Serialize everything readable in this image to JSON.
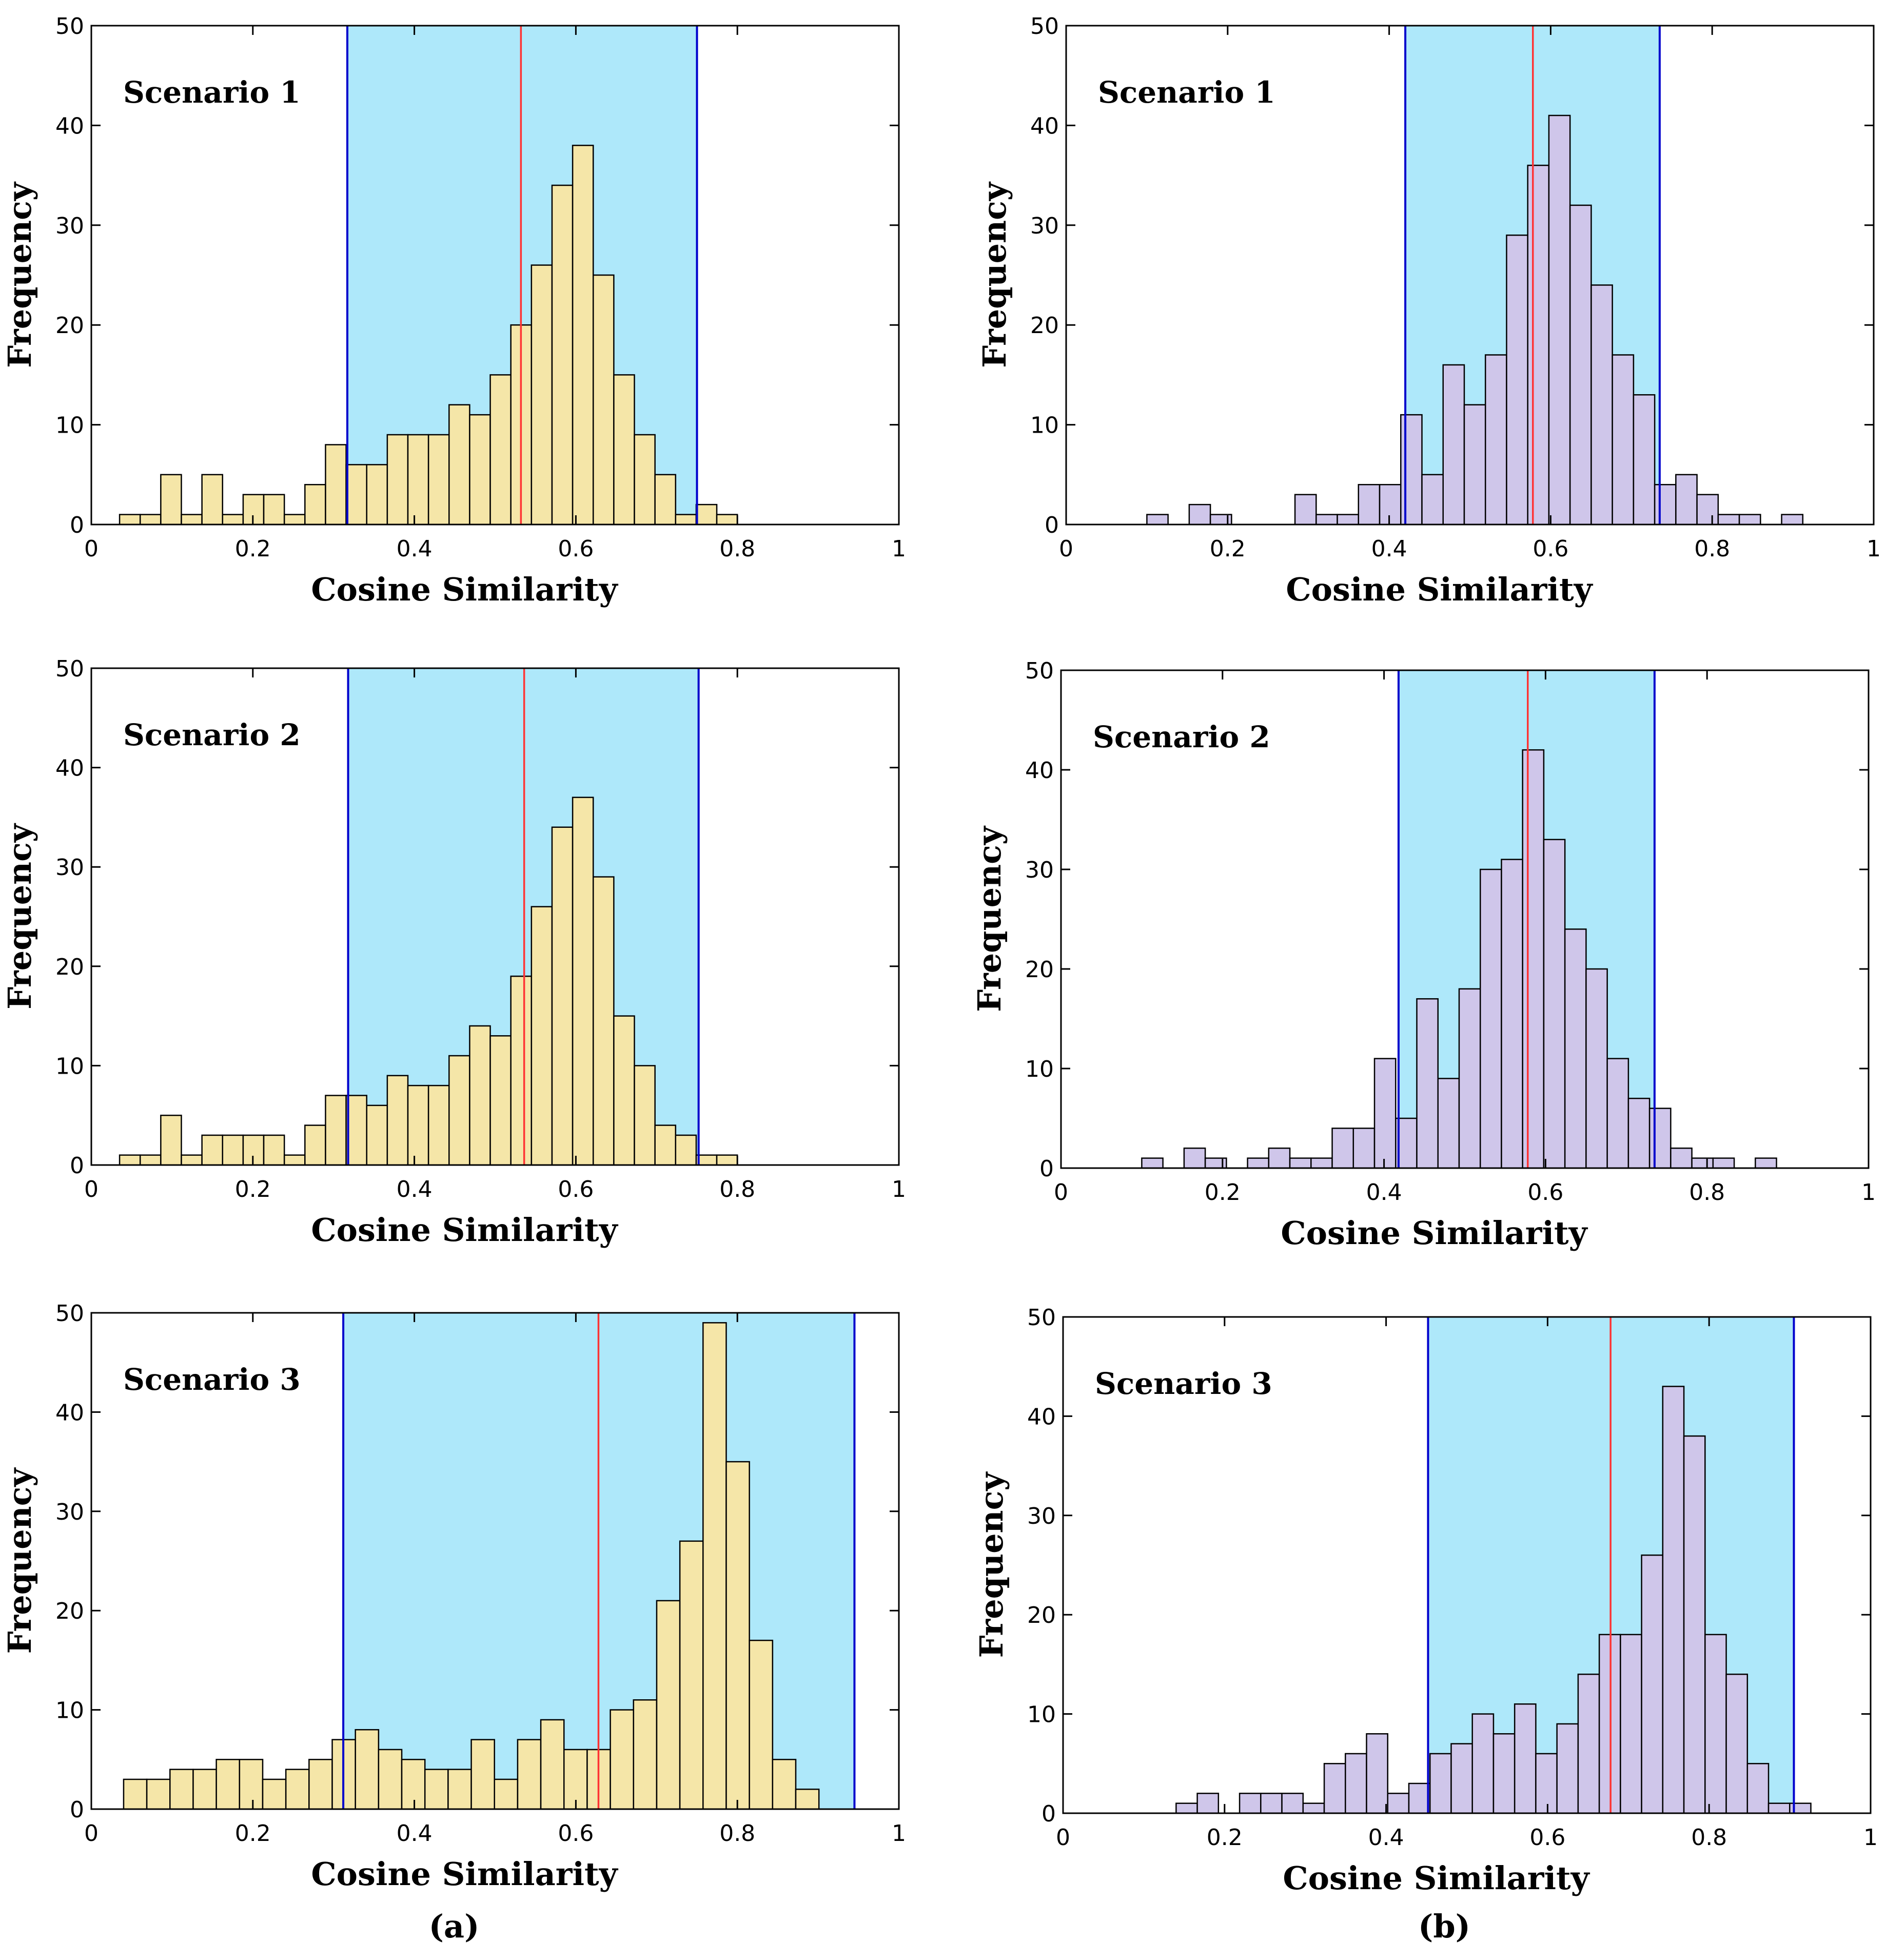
{
  "figure": {
    "captions": [
      "(a)",
      "(b)"
    ]
  },
  "colors": {
    "bar_a": "#f5e6a8",
    "bar_b": "#cfc6ea",
    "band": "#aee8fa",
    "ci_line": "#0000cc",
    "mean_line": "#ff3333"
  },
  "chart_data": [
    {
      "id": "a1",
      "type": "bar",
      "column": "a",
      "row": 1,
      "annotation": "Scenario 1",
      "xlabel": "Cosine Similarity",
      "ylabel": "Frequency",
      "xlim": [
        0,
        1
      ],
      "ylim": [
        0,
        50
      ],
      "xticks": [
        "0",
        "0.2",
        "0.4",
        "0.6",
        "0.8",
        "1"
      ],
      "yticks": [
        "0",
        "10",
        "20",
        "30",
        "40",
        "50"
      ],
      "bin_start": 0.035,
      "bin_width": 0.0255,
      "values": [
        1,
        1,
        5,
        1,
        5,
        1,
        3,
        3,
        1,
        4,
        8,
        6,
        6,
        9,
        9,
        9,
        12,
        11,
        15,
        20,
        26,
        34,
        38,
        25,
        15,
        9,
        5,
        1,
        2,
        1
      ],
      "band": [
        0.317,
        0.75
      ],
      "mean": 0.532
    },
    {
      "id": "a2",
      "type": "bar",
      "column": "a",
      "row": 2,
      "annotation": "Scenario 2",
      "xlabel": "Cosine Similarity",
      "ylabel": "Frequency",
      "xlim": [
        0,
        1
      ],
      "ylim": [
        0,
        50
      ],
      "xticks": [
        "0",
        "0.2",
        "0.4",
        "0.6",
        "0.8",
        "1"
      ],
      "yticks": [
        "0",
        "10",
        "20",
        "30",
        "40",
        "50"
      ],
      "bin_start": 0.035,
      "bin_width": 0.0255,
      "values": [
        1,
        1,
        5,
        1,
        3,
        3,
        3,
        3,
        1,
        4,
        7,
        7,
        6,
        9,
        8,
        8,
        11,
        14,
        13,
        19,
        26,
        34,
        37,
        29,
        15,
        10,
        4,
        3,
        1,
        1
      ],
      "band": [
        0.318,
        0.752
      ],
      "mean": 0.536
    },
    {
      "id": "a3",
      "type": "bar",
      "column": "a",
      "row": 3,
      "annotation": "Scenario 3",
      "xlabel": "Cosine Similarity",
      "ylabel": "Frequency",
      "xlim": [
        0,
        1
      ],
      "ylim": [
        0,
        50
      ],
      "xticks": [
        "0",
        "0.2",
        "0.4",
        "0.6",
        "0.8",
        "1"
      ],
      "yticks": [
        "0",
        "10",
        "20",
        "30",
        "40",
        "50"
      ],
      "bin_start": 0.04,
      "bin_width": 0.0287,
      "values": [
        3,
        3,
        4,
        4,
        5,
        5,
        3,
        4,
        5,
        7,
        8,
        6,
        5,
        4,
        4,
        7,
        3,
        7,
        9,
        6,
        6,
        10,
        11,
        21,
        27,
        49,
        35,
        17,
        5,
        2
      ],
      "band": [
        0.312,
        0.945
      ],
      "mean": 0.628
    },
    {
      "id": "b1",
      "type": "bar",
      "column": "b",
      "row": 1,
      "annotation": "Scenario 1",
      "xlabel": "Cosine Similarity",
      "ylabel": "Frequency",
      "xlim": [
        0,
        1
      ],
      "ylim": [
        0,
        50
      ],
      "xticks": [
        "0",
        "0.2",
        "0.4",
        "0.6",
        "0.8",
        "1"
      ],
      "yticks": [
        "0",
        "10",
        "20",
        "30",
        "40",
        "50"
      ],
      "bin_start": 0.1,
      "bin_width": 0.0262,
      "values": [
        1,
        0,
        2,
        1,
        0,
        0,
        0,
        3,
        1,
        1,
        4,
        4,
        11,
        5,
        16,
        12,
        17,
        29,
        36,
        41,
        32,
        24,
        17,
        13,
        4,
        5,
        3,
        1,
        1,
        0,
        1
      ],
      "band": [
        0.42,
        0.735
      ],
      "mean": 0.578
    },
    {
      "id": "b2",
      "type": "bar",
      "column": "b",
      "row": 2,
      "annotation": "Scenario 2",
      "xlabel": "Cosine Similarity",
      "ylabel": "Frequency",
      "xlim": [
        0,
        1
      ],
      "ylim": [
        0,
        50
      ],
      "xticks": [
        "0",
        "0.2",
        "0.4",
        "0.6",
        "0.8",
        "1"
      ],
      "yticks": [
        "0",
        "10",
        "20",
        "30",
        "40",
        "50"
      ],
      "bin_start": 0.1,
      "bin_width": 0.0262,
      "values": [
        1,
        0,
        2,
        1,
        0,
        1,
        2,
        1,
        1,
        4,
        4,
        11,
        5,
        17,
        9,
        18,
        30,
        31,
        42,
        33,
        24,
        20,
        11,
        7,
        6,
        2,
        1,
        1,
        0,
        1
      ],
      "band": [
        0.418,
        0.735
      ],
      "mean": 0.578
    },
    {
      "id": "b3",
      "type": "bar",
      "column": "b",
      "row": 3,
      "annotation": "Scenario 3",
      "xlabel": "Cosine Similarity",
      "ylabel": "Frequency",
      "xlim": [
        0,
        1
      ],
      "ylim": [
        0,
        50
      ],
      "xticks": [
        "0",
        "0.2",
        "0.4",
        "0.6",
        "0.8",
        "1"
      ],
      "yticks": [
        "0",
        "10",
        "20",
        "30",
        "40",
        "50"
      ],
      "bin_start": 0.14,
      "bin_width": 0.0262,
      "values": [
        1,
        2,
        0,
        2,
        2,
        2,
        1,
        5,
        6,
        8,
        2,
        3,
        6,
        7,
        10,
        8,
        11,
        6,
        9,
        14,
        18,
        18,
        26,
        43,
        38,
        18,
        14,
        5,
        1,
        1
      ],
      "band": [
        0.452,
        0.905
      ],
      "mean": 0.678
    }
  ]
}
